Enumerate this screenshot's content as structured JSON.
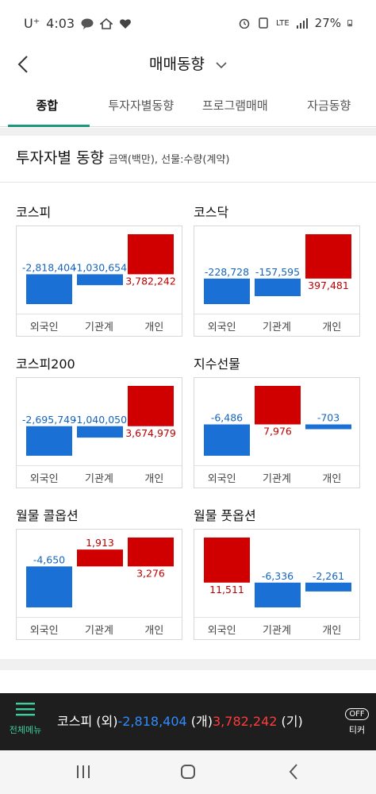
{
  "status": {
    "carrier": "U⁺",
    "time": "4:03",
    "network": "LTE",
    "battery": "27%"
  },
  "header": {
    "title": "매매동향"
  },
  "tabs": [
    {
      "label": "종합",
      "active": true
    },
    {
      "label": "투자자별동향",
      "active": false
    },
    {
      "label": "프로그램매매",
      "active": false
    },
    {
      "label": "자금동향",
      "active": false
    }
  ],
  "section": {
    "title": "투자자별 동향",
    "subtitle": "금액(백만), 선물:수량(계약)"
  },
  "colors": {
    "positive": "#d10000",
    "negative": "#1a70d4",
    "positive_text": "#c00000",
    "negative_text": "#1565c0",
    "accent": "#1a9a7a"
  },
  "cards": [
    {
      "title": "코스피",
      "chart_data": {
        "type": "bar",
        "categories": [
          "외국인",
          "기관계",
          "개인"
        ],
        "values": [
          -2818404,
          -1030654,
          3782242
        ],
        "labels": [
          "-2,818,404",
          "-1,030,654",
          "3,782,242"
        ]
      }
    },
    {
      "title": "코스닥",
      "chart_data": {
        "type": "bar",
        "categories": [
          "외국인",
          "기관계",
          "개인"
        ],
        "values": [
          -228728,
          -157595,
          397481
        ],
        "labels": [
          "-228,728",
          "-157,595",
          "397,481"
        ]
      }
    },
    {
      "title": "코스피200",
      "chart_data": {
        "type": "bar",
        "categories": [
          "외국인",
          "기관계",
          "개인"
        ],
        "values": [
          -2695749,
          -1040050,
          3674979
        ],
        "labels": [
          "-2,695,749",
          "-1,040,050",
          "3,674,979"
        ]
      }
    },
    {
      "title": "지수선물",
      "chart_data": {
        "type": "bar",
        "categories": [
          "외국인",
          "기관계",
          "개인"
        ],
        "values": [
          -6486,
          7976,
          -703
        ],
        "labels": [
          "-6,486",
          "7,976",
          "-703"
        ]
      }
    },
    {
      "title": "월물 콜옵션",
      "chart_data": {
        "type": "bar",
        "categories": [
          "외국인",
          "기관계",
          "개인"
        ],
        "values": [
          -4650,
          1913,
          3276
        ],
        "labels": [
          "-4,650",
          "1,913",
          "3,276"
        ]
      }
    },
    {
      "title": "월물 풋옵션",
      "chart_data": {
        "type": "bar",
        "categories": [
          "외국인",
          "기관계",
          "개인"
        ],
        "values": [
          11511,
          -6336,
          -2261
        ],
        "labels": [
          "11,511",
          "-6,336",
          "-2,261"
        ]
      }
    }
  ],
  "ticker": {
    "menu_label": "전체메뉴",
    "market": "코스피",
    "foreign_tag": "(외)",
    "foreign_value": "-2,818,404",
    "individual_tag": "(개)",
    "individual_value": "3,782,242",
    "institution_tag": "(기)",
    "off_label": "OFF",
    "ticker_label": "티커"
  }
}
